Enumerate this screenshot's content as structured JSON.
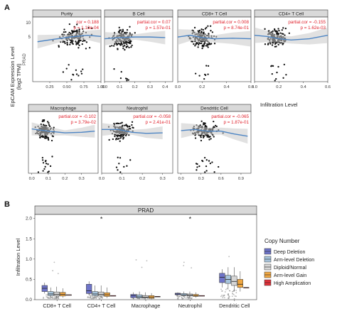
{
  "panel_a": {
    "label": "A",
    "ylabel_lines": [
      "EpCAM Expression Level",
      "(log2 TPM)"
    ],
    "xlabel": "Infiltration Level",
    "cancer": "PRAD",
    "y_ticks": [
      "5",
      "10"
    ]
  },
  "panel_b": {
    "label": "B",
    "title": "PRAD",
    "legend_title": "Copy Number"
  },
  "colors": {
    "point": "#111111",
    "fit_line": "#4d85c4",
    "band": "#c9c9c9",
    "strip": "#d9d9d9",
    "annot": "#e0222d",
    "border": "#333333",
    "box_colors": [
      "#6e74c9",
      "#a7c4dc",
      "#d6d6d6",
      "#f0a742",
      "#e3323b"
    ]
  },
  "chart_data": [
    {
      "type": "scatter",
      "title": "Purity",
      "xlim": [
        0,
        1
      ],
      "ylim": [
        0,
        11
      ],
      "x_ticks": [
        0.25,
        0.5,
        0.75,
        1.0
      ],
      "x_tick_labels": [
        "0.25",
        "0.50",
        "0.75",
        "1.00"
      ],
      "annotation": [
        "cor = 0.188",
        "p = 1.13e-04"
      ],
      "cloud": {
        "x_center": 0.6,
        "x_spread": 0.22,
        "y_center": 7.5,
        "y_spread": 1.6,
        "n": 150
      },
      "fit": {
        "x": [
          0.07,
          0.3,
          0.55,
          0.8,
          1.0
        ],
        "y": [
          6.8,
          7.2,
          7.6,
          7.9,
          7.7
        ]
      }
    },
    {
      "type": "scatter",
      "title": "B Cell",
      "xlim": [
        0,
        0.45
      ],
      "ylim": [
        0,
        11
      ],
      "x_ticks": [
        0.0,
        0.1,
        0.2,
        0.3,
        0.4
      ],
      "x_tick_labels": [
        "0.0",
        "0.1",
        "0.2",
        "0.3",
        "0.4"
      ],
      "annotation": [
        "partial.cor = 0.07",
        "p = 1.57e-01"
      ],
      "cloud": {
        "x_center": 0.12,
        "x_spread": 0.07,
        "y_center": 7.3,
        "y_spread": 1.6,
        "n": 150
      },
      "fit": {
        "x": [
          0.0,
          0.1,
          0.2,
          0.3,
          0.4
        ],
        "y": [
          7.3,
          7.5,
          7.6,
          7.6,
          7.5
        ]
      }
    },
    {
      "type": "scatter",
      "title": "CD8+ T Cell",
      "xlim": [
        0,
        0.6
      ],
      "ylim": [
        0,
        11
      ],
      "x_ticks": [
        0.0,
        0.2,
        0.4,
        0.6
      ],
      "x_tick_labels": [
        "0.0",
        "0.2",
        "0.4",
        "0.6"
      ],
      "annotation": [
        "partial.cor = 0.008",
        "p = 8.74e-01"
      ],
      "cloud": {
        "x_center": 0.2,
        "x_spread": 0.1,
        "y_center": 7.5,
        "y_spread": 1.5,
        "n": 150
      },
      "fit": {
        "x": [
          0.0,
          0.1,
          0.2,
          0.3,
          0.45,
          0.6
        ],
        "y": [
          7.6,
          7.9,
          7.5,
          7.3,
          7.4,
          7.3
        ]
      }
    },
    {
      "type": "scatter",
      "title": "CD4+ T Cell",
      "xlim": [
        0,
        0.6
      ],
      "ylim": [
        0,
        11
      ],
      "x_ticks": [
        0.0,
        0.2,
        0.4,
        0.6
      ],
      "x_tick_labels": [
        "0.0",
        "0.2",
        "0.4",
        "0.6"
      ],
      "annotation": [
        "partial.cor = -0.155",
        "p = 1.62e-03"
      ],
      "cloud": {
        "x_center": 0.18,
        "x_spread": 0.08,
        "y_center": 7.5,
        "y_spread": 1.5,
        "n": 150
      },
      "fit": {
        "x": [
          0.0,
          0.1,
          0.2,
          0.3,
          0.45,
          0.6
        ],
        "y": [
          7.9,
          7.7,
          7.3,
          7.1,
          7.3,
          7.9
        ]
      }
    },
    {
      "type": "scatter",
      "title": "Macrophage",
      "xlim": [
        -0.02,
        0.4
      ],
      "ylim": [
        0,
        11
      ],
      "x_ticks": [
        0.0,
        0.1,
        0.2,
        0.3
      ],
      "x_tick_labels": [
        "0.0",
        "0.1",
        "0.2",
        "0.3"
      ],
      "annotation": [
        "partial.cor = -0.102",
        "p = 3.79e-02"
      ],
      "cloud": {
        "x_center": 0.08,
        "x_spread": 0.05,
        "y_center": 7.4,
        "y_spread": 1.5,
        "n": 150
      },
      "fit": {
        "x": [
          0.0,
          0.1,
          0.2,
          0.3,
          0.38
        ],
        "y": [
          7.9,
          7.5,
          7.2,
          7.3,
          7.5
        ]
      }
    },
    {
      "type": "scatter",
      "title": "Neutrophil",
      "xlim": [
        0,
        0.35
      ],
      "ylim": [
        0,
        11
      ],
      "x_ticks": [
        0.0,
        0.1,
        0.2,
        0.3
      ],
      "x_tick_labels": [
        "0.0",
        "0.1",
        "0.2",
        "0.3"
      ],
      "annotation": [
        "partial.cor = -0.058",
        "p = 2.41e-01"
      ],
      "cloud": {
        "x_center": 0.1,
        "x_spread": 0.05,
        "y_center": 7.5,
        "y_spread": 1.5,
        "n": 150
      },
      "fit": {
        "x": [
          0.0,
          0.08,
          0.15,
          0.22,
          0.3
        ],
        "y": [
          7.8,
          7.8,
          7.3,
          7.1,
          7.2
        ]
      }
    },
    {
      "type": "scatter",
      "title": "Dendritic Cell",
      "xlim": [
        -0.05,
        1.05
      ],
      "ylim": [
        0,
        11
      ],
      "x_ticks": [
        0.0,
        0.3,
        0.6,
        0.9
      ],
      "x_tick_labels": [
        "0.0",
        "0.3",
        "0.6",
        "0.9"
      ],
      "annotation": [
        "partial.cor = -0.065",
        "p = 1.87e-01"
      ],
      "cloud": {
        "x_center": 0.35,
        "x_spread": 0.2,
        "y_center": 7.5,
        "y_spread": 1.5,
        "n": 150
      },
      "fit": {
        "x": [
          0.0,
          0.2,
          0.4,
          0.6,
          0.8,
          1.0
        ],
        "y": [
          7.6,
          7.8,
          7.5,
          7.5,
          7.0,
          6.6
        ]
      }
    },
    {
      "type": "box",
      "title": "PRAD",
      "ylabel": "Infiltration Level",
      "ylim": [
        0,
        2.1
      ],
      "y_ticks": [
        0.0,
        0.5,
        1.0,
        1.5,
        2.0
      ],
      "y_tick_labels": [
        "0.0",
        "0.5",
        "1.0",
        "1.5",
        "2.0"
      ],
      "categories": [
        "CD8+ T Cell",
        "CD4+ T Cell",
        "Macrophage",
        "Neutrophil",
        "Dendritic Cell"
      ],
      "significance": [
        {
          "category": "CD4+ T Cell",
          "label": "*",
          "y": 2.0
        },
        {
          "category": "Neutrophil",
          "label": "*",
          "y": 2.0
        }
      ],
      "legend": [
        "Deep Deletion",
        "Arm-level Deletion",
        "Diploid/Normal",
        "Arm-level Gain",
        "High Amplication"
      ],
      "series": [
        {
          "name": "Deep Deletion",
          "boxes": [
            [
              0.15,
              0.2,
              0.28,
              0.35,
              0.42
            ],
            [
              0.1,
              0.15,
              0.22,
              0.38,
              0.45
            ],
            [
              0.02,
              0.05,
              0.1,
              0.13,
              0.18
            ],
            [
              0.1,
              0.12,
              0.14,
              0.16,
              0.18
            ],
            [
              0.3,
              0.42,
              0.55,
              0.65,
              0.75
            ]
          ]
        },
        {
          "name": "Arm-level Deletion",
          "boxes": [
            [
              0.05,
              0.1,
              0.14,
              0.2,
              0.3
            ],
            [
              0.05,
              0.1,
              0.14,
              0.2,
              0.35
            ],
            [
              0.01,
              0.04,
              0.07,
              0.12,
              0.2
            ],
            [
              0.07,
              0.1,
              0.12,
              0.15,
              0.2
            ],
            [
              0.25,
              0.4,
              0.5,
              0.6,
              0.8
            ]
          ]
        },
        {
          "name": "Diploid/Normal",
          "boxes": [
            [
              0.04,
              0.09,
              0.13,
              0.19,
              0.32
            ],
            [
              0.04,
              0.09,
              0.13,
              0.19,
              0.35
            ],
            [
              0.01,
              0.04,
              0.06,
              0.1,
              0.18
            ],
            [
              0.06,
              0.09,
              0.11,
              0.14,
              0.2
            ],
            [
              0.2,
              0.35,
              0.45,
              0.58,
              0.8
            ]
          ]
        },
        {
          "name": "Arm-level Gain",
          "boxes": [
            [
              0.05,
              0.09,
              0.13,
              0.18,
              0.28
            ],
            [
              0.04,
              0.08,
              0.12,
              0.17,
              0.3
            ],
            [
              0.01,
              0.03,
              0.06,
              0.1,
              0.16
            ],
            [
              0.05,
              0.08,
              0.1,
              0.13,
              0.18
            ],
            [
              0.2,
              0.3,
              0.38,
              0.5,
              0.7
            ]
          ]
        },
        {
          "name": "High Amplication",
          "boxes": [
            [
              0.12,
              0.12,
              0.12,
              0.12,
              0.12
            ],
            [
              0.1,
              0.1,
              0.1,
              0.1,
              0.1
            ],
            [
              0.08,
              0.08,
              0.08,
              0.08,
              0.08
            ],
            [
              0.1,
              0.1,
              0.1,
              0.1,
              0.1
            ],
            [
              0.3,
              0.3,
              0.3,
              0.3,
              0.3
            ]
          ]
        }
      ]
    }
  ]
}
